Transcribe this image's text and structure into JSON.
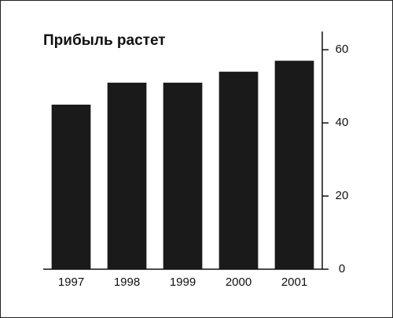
{
  "chart_data": {
    "type": "bar",
    "title": "Прибыль растет",
    "categories": [
      "1997",
      "1998",
      "1999",
      "2000",
      "2001"
    ],
    "values": [
      45,
      51,
      51,
      54,
      57
    ],
    "color": "#1a1a1a",
    "ylim": [
      0,
      65
    ],
    "yticks": [
      0,
      20,
      40,
      60
    ],
    "y_axis_side": "right"
  }
}
